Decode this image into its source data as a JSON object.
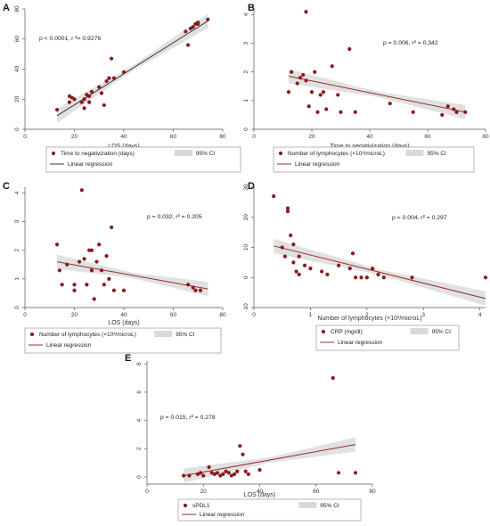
{
  "colors": {
    "point": "#8b1a1a",
    "line_dark": "#333333",
    "line_red": "#9b2c2c",
    "ci": "#d9d9d9"
  },
  "chart_data": [
    {
      "id": "A",
      "type": "scatter",
      "panel_label": "A",
      "title": "",
      "xlabel": "LOS (days)",
      "ylabel": "",
      "xlim": [
        0,
        80
      ],
      "ylim": [
        0,
        80
      ],
      "xticks": [
        0,
        20,
        40,
        60,
        80
      ],
      "yticks": [
        0,
        20,
        40,
        60,
        80
      ],
      "annotation": "p < 0.0001, r ²= 0.9276",
      "series": [
        {
          "name": "Time to negativization (days)",
          "kind": "points",
          "x": [
            13,
            18,
            18,
            19,
            20,
            23,
            24,
            24,
            25,
            26,
            26,
            27,
            30,
            31,
            32,
            33,
            34,
            35,
            36,
            40,
            65,
            66,
            67,
            68,
            69,
            70,
            70,
            74
          ],
          "y": [
            13,
            22,
            18,
            21,
            20,
            18,
            14,
            20,
            23,
            22,
            18,
            25,
            28,
            24,
            16,
            32,
            34,
            47,
            34,
            38,
            65,
            56,
            67,
            68,
            70,
            70,
            71,
            73
          ]
        },
        {
          "name": "Linear regression",
          "kind": "line",
          "x": [
            13,
            74
          ],
          "y": [
            9,
            72
          ]
        }
      ],
      "legend": [
        {
          "marker": "dot",
          "label": "Time to negativization (days)"
        },
        {
          "marker": "ci",
          "label": "95% CI"
        },
        {
          "marker": "line",
          "label": "Linear regression"
        }
      ]
    },
    {
      "id": "B",
      "type": "scatter",
      "panel_label": "B",
      "title": "",
      "xlabel": "Time to negativization (days)",
      "ylabel": "",
      "xlim": [
        0,
        80
      ],
      "ylim": [
        0,
        4.2
      ],
      "xticks": [
        0,
        20,
        40,
        60,
        80
      ],
      "yticks": [
        0,
        1,
        2,
        3,
        4
      ],
      "annotation": "p = 0.006, r² = 0.342",
      "series": [
        {
          "name": "Number of lymphocytes (×10³/microL)",
          "kind": "points",
          "x": [
            12,
            13,
            15,
            16,
            17,
            18,
            18,
            19,
            20,
            21,
            22,
            23,
            24,
            25,
            27,
            29,
            30,
            33,
            35,
            47,
            55,
            65,
            67,
            69,
            70,
            73
          ],
          "y": [
            1.3,
            2.0,
            1.6,
            1.8,
            1.9,
            4.1,
            1.7,
            0.8,
            1.3,
            2.0,
            0.6,
            1.2,
            1.3,
            0.7,
            2.2,
            1.2,
            0.6,
            2.8,
            0.6,
            0.9,
            0.6,
            0.5,
            0.8,
            0.7,
            0.6,
            0.6
          ]
        },
        {
          "name": "Linear regression",
          "kind": "line",
          "x": [
            12,
            73
          ],
          "y": [
            1.85,
            0.6
          ]
        }
      ],
      "legend": [
        {
          "marker": "dot",
          "label": "Number of lymphocytes (×10³/microL)"
        },
        {
          "marker": "ci",
          "label": "95% CI"
        },
        {
          "marker": "line",
          "label": "Linear regression"
        }
      ]
    },
    {
      "id": "C",
      "type": "scatter",
      "panel_label": "C",
      "title": "",
      "xlabel": "LOS (days)",
      "ylabel": "",
      "xlim": [
        0,
        80
      ],
      "ylim": [
        0,
        4.2
      ],
      "xticks": [
        0,
        20,
        40,
        60,
        80
      ],
      "yticks": [
        0,
        1,
        2,
        3,
        4
      ],
      "annotation": "p = 0.032, r² = 0.205",
      "series": [
        {
          "name": "Number of lymphocytes (×10³/microL)",
          "kind": "points",
          "x": [
            13,
            14,
            15,
            17,
            20,
            20,
            22,
            23,
            24,
            25,
            26,
            27,
            27,
            28,
            29,
            30,
            31,
            32,
            33,
            34,
            35,
            36,
            40,
            66,
            68,
            69,
            71
          ],
          "y": [
            2.2,
            1.3,
            0.8,
            1.5,
            0.8,
            0.6,
            1.6,
            4.1,
            1.7,
            0.8,
            2.0,
            1.3,
            2.0,
            0.3,
            1.6,
            2.2,
            1.3,
            0.8,
            1.8,
            1.0,
            2.8,
            0.6,
            0.6,
            0.8,
            0.7,
            0.6,
            0.6
          ]
        },
        {
          "name": "Linear regression",
          "kind": "line",
          "x": [
            13,
            74
          ],
          "y": [
            1.6,
            0.65
          ]
        }
      ],
      "legend": [
        {
          "marker": "dot",
          "label": "Number of lymphocytes (×10³/microL)"
        },
        {
          "marker": "ci",
          "label": "95% CI"
        },
        {
          "marker": "line",
          "label": "Linear regression"
        }
      ]
    },
    {
      "id": "D",
      "type": "scatter",
      "panel_label": "D",
      "title": "",
      "xlabel": "Number of lymphocytes (×10³/microL)",
      "ylabel": "",
      "xlim": [
        0,
        4.1
      ],
      "ylim": [
        -10,
        30
      ],
      "xticks": [
        0,
        1,
        2,
        3,
        4
      ],
      "yticks": [
        -10,
        0,
        10,
        20,
        30
      ],
      "annotation": "p = 0.004, r² = 0.297",
      "series": [
        {
          "name": "CRP (mg/dl)",
          "kind": "points",
          "x": [
            0.35,
            0.5,
            0.55,
            0.6,
            0.6,
            0.65,
            0.7,
            0.7,
            0.75,
            0.8,
            0.8,
            0.9,
            1.0,
            1.2,
            1.3,
            1.5,
            1.7,
            1.75,
            1.8,
            1.9,
            2.0,
            2.1,
            2.2,
            2.3,
            2.8,
            4.1
          ],
          "y": [
            27,
            10,
            7,
            23,
            22,
            14,
            11,
            5,
            2,
            7,
            1,
            4,
            3,
            2,
            1,
            4,
            3,
            8,
            0,
            0,
            0,
            3,
            1,
            0,
            0,
            0
          ]
        },
        {
          "name": "Linear regression",
          "kind": "line",
          "x": [
            0.35,
            4.1
          ],
          "y": [
            10.5,
            -7
          ]
        }
      ],
      "legend": [
        {
          "marker": "dot",
          "label": "CRP (mg/dl)"
        },
        {
          "marker": "ci",
          "label": "95% CI"
        },
        {
          "marker": "line",
          "label": "Linear regression"
        }
      ]
    },
    {
      "id": "E",
      "type": "scatter",
      "panel_label": "E",
      "title": "",
      "xlabel": "LOS (days)",
      "ylabel": "",
      "xlim": [
        0,
        80
      ],
      "ylim": [
        -0.5,
        8.2
      ],
      "xticks": [
        0,
        20,
        40,
        60,
        80
      ],
      "yticks": [
        0,
        2,
        4,
        6,
        8
      ],
      "annotation": "p = 0.015, r² = 0.278",
      "series": [
        {
          "name": "sPDL1",
          "kind": "points",
          "x": [
            13,
            15,
            18,
            19,
            20,
            22,
            23,
            24,
            25,
            26,
            27,
            28,
            29,
            30,
            31,
            32,
            33,
            34,
            35,
            36,
            40,
            66,
            68,
            74
          ],
          "y": [
            0.1,
            0.1,
            0.2,
            0.3,
            0.1,
            0.7,
            0.3,
            0.2,
            0.3,
            0.1,
            0.2,
            0.4,
            0.3,
            0.1,
            0.2,
            0.4,
            2.2,
            1.6,
            0.4,
            0.2,
            0.5,
            7.0,
            0.3,
            0.3
          ]
        },
        {
          "name": "Linear regression",
          "kind": "line",
          "x": [
            13,
            74
          ],
          "y": [
            0.1,
            2.3
          ]
        }
      ],
      "legend": [
        {
          "marker": "dot",
          "label": "sPDL1"
        },
        {
          "marker": "ci",
          "label": "95% CI"
        },
        {
          "marker": "line",
          "label": "Linear regression"
        }
      ]
    }
  ]
}
